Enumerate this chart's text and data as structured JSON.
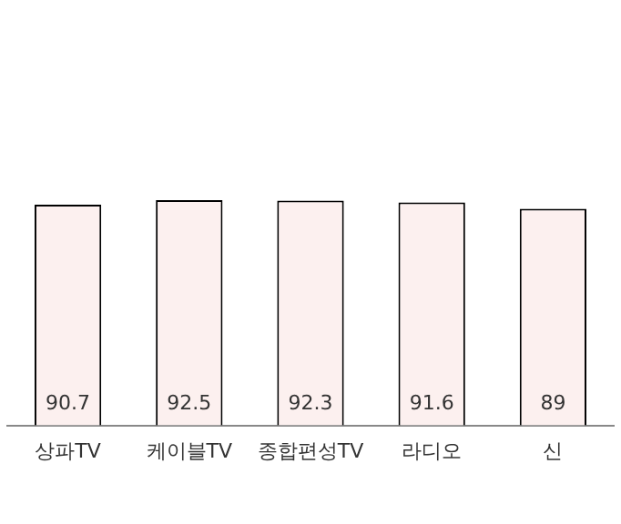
{
  "chart_data": {
    "type": "bar",
    "categories": [
      "상파TV",
      "케이블TV",
      "종합편성TV",
      "라디오",
      "신"
    ],
    "values": [
      90.7,
      92.5,
      92.3,
      91.6,
      89
    ],
    "color": "#fcf0ef",
    "data_labels": true,
    "grid": false,
    "legend": false
  }
}
